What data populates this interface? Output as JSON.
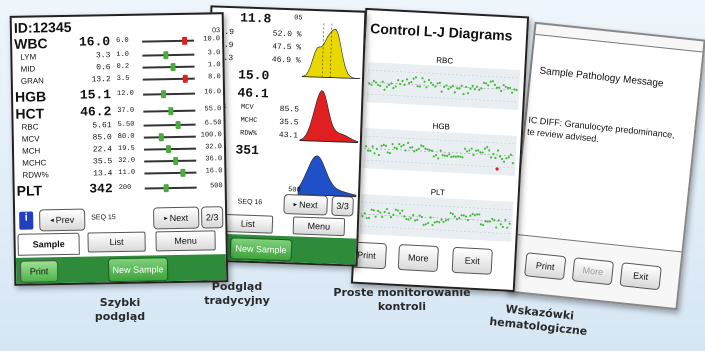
{
  "panel1": {
    "id_label": "ID:12345",
    "params": [
      {
        "name": "WBC",
        "value": "16.0",
        "big": true
      },
      {
        "name": "LYM",
        "value": "3.3"
      },
      {
        "name": "MID",
        "value": "0.6"
      },
      {
        "name": "GRAN",
        "value": "13.2"
      },
      {
        "name": "HGB",
        "value": "15.1",
        "big": true
      },
      {
        "name": "HCT",
        "value": "46.2",
        "big": true
      },
      {
        "name": "RBC",
        "value": "5.61"
      },
      {
        "name": "MCV",
        "value": "85.0"
      },
      {
        "name": "MCH",
        "value": "22.4"
      },
      {
        "name": "MCHC",
        "value": "35.5"
      },
      {
        "name": "RDW%",
        "value": "13.4"
      },
      {
        "name": "PLT",
        "value": "342",
        "big": true
      }
    ],
    "ranges": [
      {
        "low": "6.0",
        "high": "10.0",
        "top": "03"
      },
      {
        "low": "1.0",
        "high": "3.0"
      },
      {
        "low": "0.2",
        "high": "1.0"
      },
      {
        "low": "3.5",
        "high": "8.0"
      },
      {
        "low": "12.0",
        "high": "16.0"
      },
      {
        "low": "37.0",
        "high": "55.0"
      },
      {
        "low": "5.50",
        "high": "6.50"
      },
      {
        "low": "80.0",
        "high": "100.0"
      },
      {
        "low": "19.5",
        "high": "32.0"
      },
      {
        "low": "32.0",
        "high": "36.0"
      },
      {
        "low": "11.0",
        "high": "16.0"
      },
      {
        "low": "200",
        "high": "500"
      }
    ],
    "prev_label": "Prev",
    "seq_label": "SEQ 15",
    "next_label": "Next",
    "page_label": "2/3",
    "tabs": {
      "sample": "Sample",
      "list": "List",
      "menu": "Menu"
    },
    "print_label": "Print",
    "new_sample_label": "New Sample",
    "caption": "Szybki\npodgląd"
  },
  "panel2": {
    "values": [
      {
        "v": "11.8",
        "big": true
      },
      {
        "a": "2.9",
        "b": "52.0 %"
      },
      {
        "a": "1.9",
        "b": "47.5 %"
      },
      {
        "a": "7.3",
        "b": "46.9 %"
      },
      {
        "v": "15.0",
        "big": true
      },
      {
        "v": "46.1",
        "big": true
      },
      {
        "a": "64",
        "n": "MCV",
        "b": "85.5"
      },
      {
        "a": "84",
        "n": "MCHC",
        "b": "35.5"
      },
      {
        "a": "20",
        "n": "RDW%",
        "b": "43.1"
      },
      {
        "v": "351",
        "big": true
      }
    ],
    "scale_top": "05",
    "scale_bottom": "500",
    "seq_label": "SEQ 16",
    "prev_partial": "ev",
    "next_label": "Next",
    "page_label": "3/3",
    "tabs": {
      "list": "List",
      "menu": "Menu"
    },
    "new_sample_label": "New Sample",
    "caption": "Podgląd\ntradycyjny",
    "hist_colors": {
      "wbc": "#e8d800",
      "rbc": "#e02020",
      "plt": "#2050c8"
    }
  },
  "panel3": {
    "title": "Control L-J Diagrams",
    "charts": [
      "RBC",
      "HGB",
      "PLT"
    ],
    "buttons": {
      "print": "Print",
      "more": "More",
      "exit": "Exit"
    },
    "caption": "Proste monitorowanie\nkontroli"
  },
  "panel4": {
    "title": "Sample Pathology Message",
    "message_line1": "IC DIFF: Granulocyte predominance,",
    "message_line2": "te review advised.",
    "buttons": {
      "print": "Print",
      "more": "More",
      "exit": "Exit"
    },
    "caption": "Wskazówki\nhematologiczne"
  }
}
